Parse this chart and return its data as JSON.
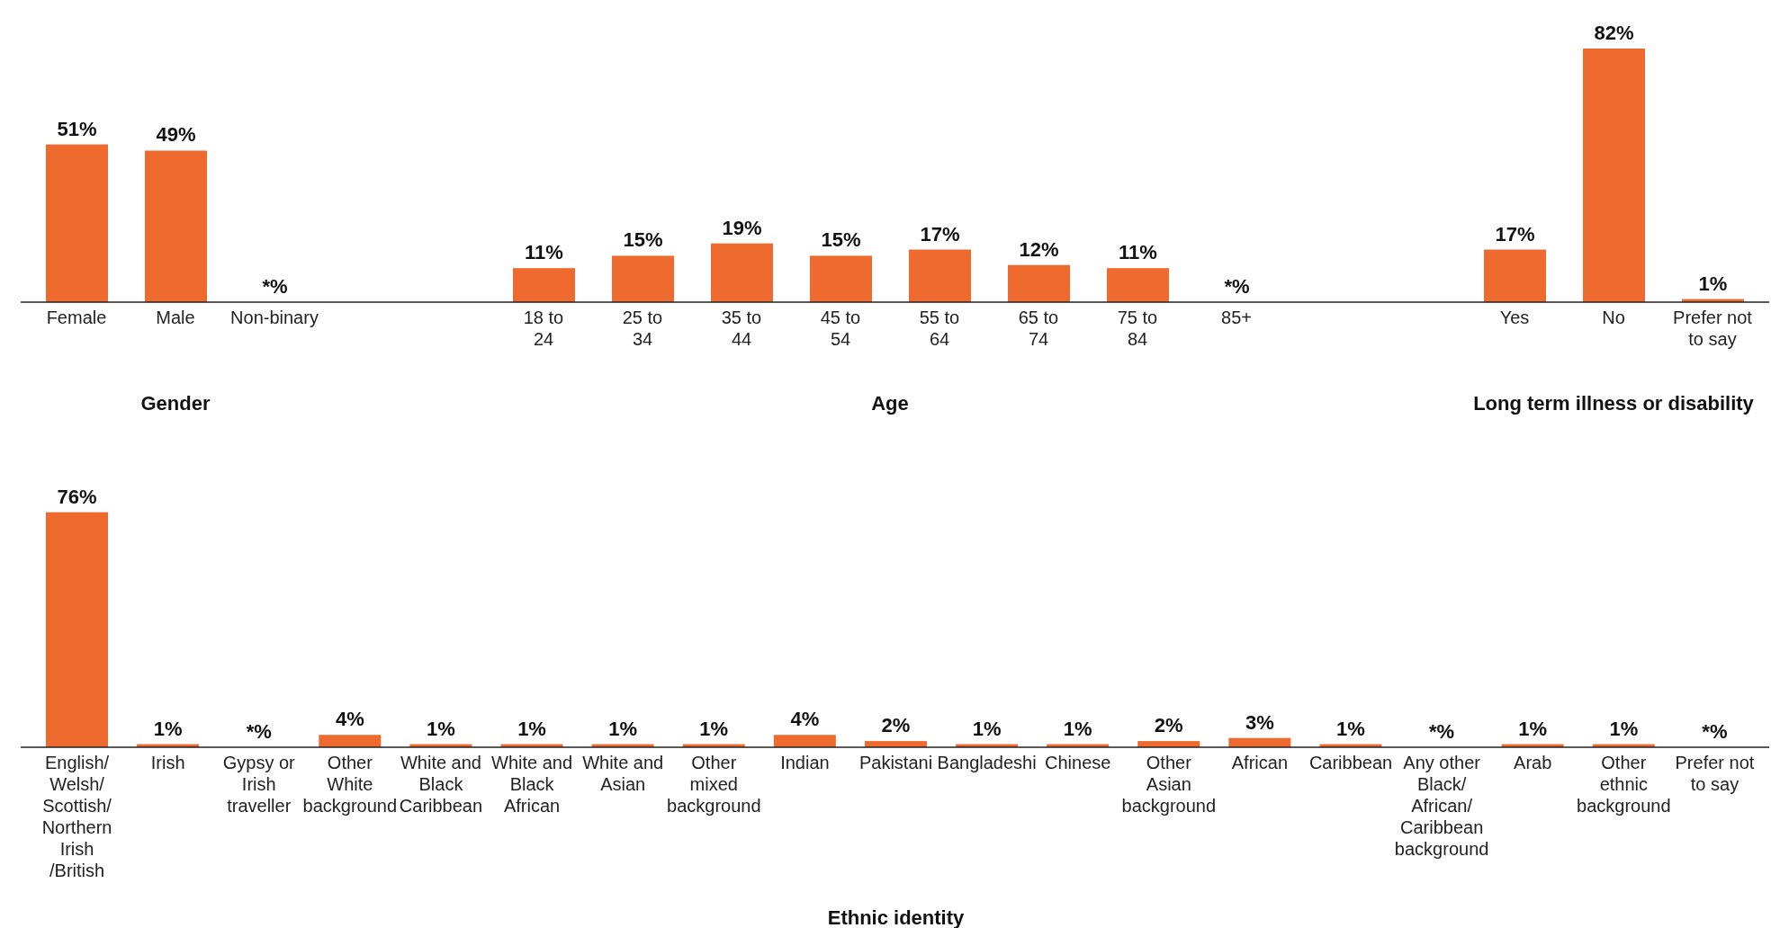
{
  "chart_data": [
    {
      "type": "bar",
      "xlabel": "Gender",
      "categories": [
        "Female",
        "Male",
        "Non-binary"
      ],
      "values": [
        51,
        49,
        0
      ],
      "value_labels": [
        "51%",
        "49%",
        "*%"
      ],
      "color": "#ee6a2e",
      "tick_labels": "x"
    },
    {
      "type": "bar",
      "xlabel": "Age",
      "categories": [
        "18 to 24",
        "25 to 34",
        "35 to 44",
        "45 to 54",
        "55 to 64",
        "65 to 74",
        "75 to 84",
        "85+"
      ],
      "values": [
        11,
        15,
        19,
        15,
        17,
        12,
        11,
        0
      ],
      "value_labels": [
        "11%",
        "15%",
        "19%",
        "15%",
        "17%",
        "12%",
        "11%",
        "*%"
      ],
      "color": "#ee6a2e",
      "tick_labels": "x"
    },
    {
      "type": "bar",
      "xlabel": "Long term illness or disability",
      "categories": [
        "Yes",
        "No",
        "Prefer not to say"
      ],
      "values": [
        17,
        82,
        1
      ],
      "value_labels": [
        "17%",
        "82%",
        "1%"
      ],
      "color": "#ee6a2e",
      "tick_labels": "x"
    },
    {
      "type": "bar",
      "xlabel": "Ethnic identity",
      "categories": [
        "English/ Welsh/ Scottish/ Northern Irish /British",
        "Irish",
        "Gypsy or Irish traveller",
        "Other White background",
        "White and Black Caribbean",
        "White and Black African",
        "White and Asian",
        "Other mixed background",
        "Indian",
        "Pakistani",
        "Bangladeshi",
        "Chinese",
        "Other Asian background",
        "African",
        "Caribbean",
        "Any other Black/ African/ Caribbean background",
        "Arab",
        "Other ethnic background",
        "Prefer not to say"
      ],
      "values": [
        76,
        1,
        0,
        4,
        1,
        1,
        1,
        1,
        4,
        2,
        1,
        1,
        2,
        3,
        1,
        0,
        1,
        1,
        0
      ],
      "value_labels": [
        "76%",
        "1%",
        "*%",
        "4%",
        "1%",
        "1%",
        "1%",
        "1%",
        "4%",
        "2%",
        "1%",
        "1%",
        "2%",
        "3%",
        "1%",
        "*%",
        "1%",
        "1%",
        "*%"
      ],
      "color": "#ee6a2e",
      "tick_labels": "x"
    }
  ]
}
